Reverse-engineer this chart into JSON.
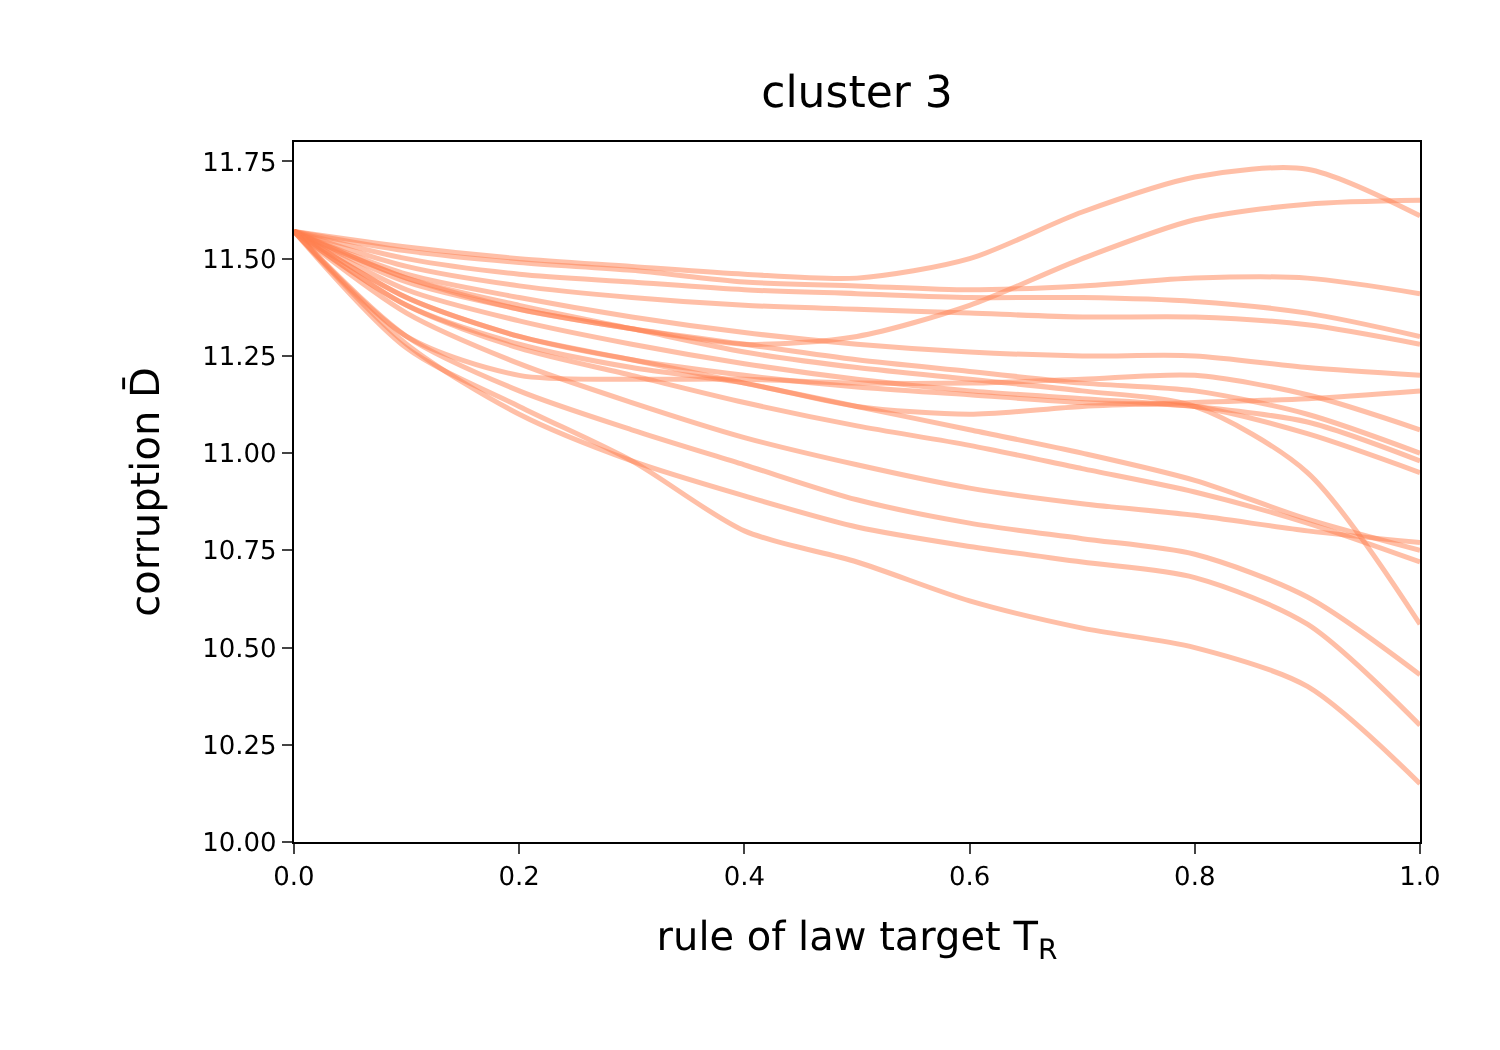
{
  "chart_data": {
    "type": "line",
    "title": "cluster 3",
    "xlabel": "rule of law target T$_{R}$",
    "ylabel": "corruption D̄",
    "x": [
      0,
      0.1,
      0.2,
      0.3,
      0.4,
      0.5,
      0.6,
      0.7,
      0.8,
      0.9,
      1.0
    ],
    "xlim": [
      0,
      1
    ],
    "ylim": [
      10,
      11.8
    ],
    "xticks": [
      {
        "value": 0,
        "label": "0.0"
      },
      {
        "value": 0.2,
        "label": "0.2"
      },
      {
        "value": 0.4,
        "label": "0.4"
      },
      {
        "value": 0.6,
        "label": "0.6"
      },
      {
        "value": 0.8,
        "label": "0.8"
      },
      {
        "value": 1,
        "label": "1.0"
      }
    ],
    "yticks": [
      {
        "value": 10,
        "label": "10.00"
      },
      {
        "value": 10.25,
        "label": "10.25"
      },
      {
        "value": 10.5,
        "label": "10.50"
      },
      {
        "value": 10.75,
        "label": "10.75"
      },
      {
        "value": 11,
        "label": "11.00"
      },
      {
        "value": 11.25,
        "label": "11.25"
      },
      {
        "value": 11.5,
        "label": "11.50"
      },
      {
        "value": 11.75,
        "label": "11.75"
      }
    ],
    "marker": "none",
    "line_style": "solid",
    "series": [
      {
        "color": "#ff7f50",
        "values": [
          11.57,
          11.53,
          11.5,
          11.48,
          11.46,
          11.45,
          11.5,
          11.62,
          11.71,
          11.73,
          11.61
        ]
      },
      {
        "color": "#ff7f50",
        "values": [
          11.57,
          11.45,
          11.37,
          11.32,
          11.28,
          11.3,
          11.38,
          11.5,
          11.6,
          11.64,
          11.65
        ]
      },
      {
        "color": "#ff7f50",
        "values": [
          11.57,
          11.52,
          11.49,
          11.47,
          11.44,
          11.43,
          11.42,
          11.43,
          11.45,
          11.45,
          11.41
        ]
      },
      {
        "color": "#ff7f50",
        "values": [
          11.57,
          11.5,
          11.46,
          11.44,
          11.42,
          11.41,
          11.4,
          11.4,
          11.39,
          11.36,
          11.3
        ]
      },
      {
        "color": "#ff7f50",
        "values": [
          11.57,
          11.48,
          11.43,
          11.4,
          11.38,
          11.37,
          11.36,
          11.35,
          11.35,
          11.33,
          11.28
        ]
      },
      {
        "color": "#ff7f50",
        "values": [
          11.57,
          11.46,
          11.4,
          11.35,
          11.31,
          11.28,
          11.26,
          11.25,
          11.25,
          11.22,
          11.2
        ]
      },
      {
        "color": "#ff7f50",
        "values": [
          11.57,
          11.44,
          11.37,
          11.32,
          11.28,
          11.24,
          11.21,
          11.18,
          11.16,
          11.1,
          11.0
        ]
      },
      {
        "color": "#ff7f50",
        "values": [
          11.57,
          11.42,
          11.34,
          11.28,
          11.23,
          11.19,
          11.16,
          11.14,
          11.12,
          11.08,
          10.98
        ]
      },
      {
        "color": "#ff7f50",
        "values": [
          11.57,
          11.4,
          11.3,
          11.24,
          11.2,
          11.17,
          11.15,
          11.13,
          11.12,
          11.05,
          10.95
        ]
      },
      {
        "color": "#ff7f50",
        "values": [
          11.57,
          11.38,
          11.28,
          11.22,
          11.18,
          11.12,
          11.1,
          11.12,
          11.13,
          11.14,
          11.16
        ]
      },
      {
        "color": "#ff7f50",
        "values": [
          11.57,
          11.3,
          11.2,
          11.19,
          11.19,
          11.18,
          11.18,
          11.19,
          11.2,
          11.15,
          11.06
        ]
      },
      {
        "color": "#ff7f50",
        "values": [
          11.57,
          11.45,
          11.38,
          11.32,
          11.26,
          11.22,
          11.19,
          11.16,
          11.12,
          10.95,
          10.56
        ]
      },
      {
        "color": "#ff7f50",
        "values": [
          11.57,
          11.4,
          11.3,
          11.24,
          11.18,
          11.12,
          11.06,
          11.0,
          10.93,
          10.83,
          10.75
        ]
      },
      {
        "color": "#ff7f50",
        "values": [
          11.57,
          11.38,
          11.27,
          11.2,
          11.13,
          11.07,
          11.02,
          10.96,
          10.9,
          10.82,
          10.72
        ]
      },
      {
        "color": "#ff7f50",
        "values": [
          11.57,
          11.36,
          11.23,
          11.13,
          11.04,
          10.97,
          10.91,
          10.87,
          10.84,
          10.8,
          10.77
        ]
      },
      {
        "color": "#ff7f50",
        "values": [
          11.57,
          11.3,
          11.16,
          11.06,
          10.97,
          10.88,
          10.82,
          10.78,
          10.74,
          10.63,
          10.43
        ]
      },
      {
        "color": "#ff7f50",
        "values": [
          11.57,
          11.28,
          11.1,
          10.98,
          10.89,
          10.81,
          10.76,
          10.72,
          10.68,
          10.56,
          10.3
        ]
      },
      {
        "color": "#ff7f50",
        "values": [
          11.57,
          11.27,
          11.12,
          10.98,
          10.8,
          10.72,
          10.62,
          10.55,
          10.5,
          10.4,
          10.15
        ]
      }
    ]
  }
}
